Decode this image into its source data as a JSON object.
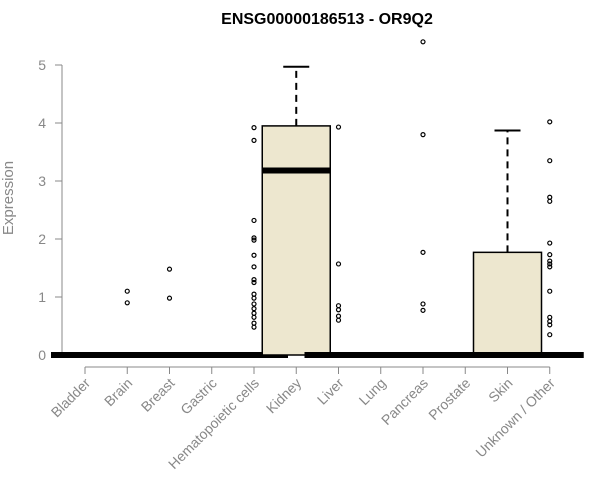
{
  "chart_data": {
    "type": "box",
    "title": "ENSG00000186513 - OR9Q2",
    "ylabel": "Expression",
    "xlabel": "",
    "ylim": [
      0,
      5.5
    ],
    "y_ticks": [
      0,
      1,
      2,
      3,
      4,
      5
    ],
    "box_color": "#ede7cf",
    "categories": [
      {
        "name": "Bladder",
        "q1": 0,
        "median": 0,
        "q3": 0,
        "whisker_low": 0,
        "whisker_high": 0,
        "outliers": []
      },
      {
        "name": "Brain",
        "q1": 0,
        "median": 0,
        "q3": 0,
        "whisker_low": 0,
        "whisker_high": 0,
        "outliers": [
          1.1,
          0.9
        ]
      },
      {
        "name": "Breast",
        "q1": 0,
        "median": 0,
        "q3": 0,
        "whisker_low": 0,
        "whisker_high": 0,
        "outliers": [
          1.48,
          0.98
        ]
      },
      {
        "name": "Gastric",
        "q1": 0,
        "median": 0,
        "q3": 0,
        "whisker_low": 0,
        "whisker_high": 0,
        "outliers": []
      },
      {
        "name": "Hematopoietic cells",
        "q1": 0,
        "median": 0,
        "q3": 0,
        "whisker_low": 0,
        "whisker_high": 0,
        "outliers": [
          3.92,
          3.7,
          2.32,
          2.02,
          1.98,
          1.72,
          1.52,
          1.3,
          1.25,
          1.05,
          0.98,
          0.88,
          0.8,
          0.72,
          0.65,
          0.55,
          0.48
        ]
      },
      {
        "name": "Kidney",
        "q1": 0,
        "median": 3.18,
        "q3": 3.95,
        "whisker_low": 0,
        "whisker_high": 4.97,
        "outliers": []
      },
      {
        "name": "Liver",
        "q1": 0,
        "median": 0,
        "q3": 0,
        "whisker_low": 0,
        "whisker_high": 0,
        "outliers": [
          3.93,
          1.57,
          0.85,
          0.78,
          0.67,
          0.6
        ]
      },
      {
        "name": "Lung",
        "q1": 0,
        "median": 0,
        "q3": 0,
        "whisker_low": 0,
        "whisker_high": 0,
        "outliers": []
      },
      {
        "name": "Pancreas",
        "q1": 0,
        "median": 0,
        "q3": 0,
        "whisker_low": 0,
        "whisker_high": 0,
        "outliers": [
          5.4,
          3.8,
          1.77,
          0.88,
          0.77
        ]
      },
      {
        "name": "Prostate",
        "q1": 0,
        "median": 0,
        "q3": 0,
        "whisker_low": 0,
        "whisker_high": 0,
        "outliers": []
      },
      {
        "name": "Skin",
        "q1": 0,
        "median": 0,
        "q3": 1.77,
        "whisker_low": 0,
        "whisker_high": 3.87,
        "outliers": []
      },
      {
        "name": "Unknown / Other",
        "q1": 0,
        "median": 0,
        "q3": 0,
        "whisker_low": 0,
        "whisker_high": 0,
        "outliers": [
          4.02,
          3.35,
          2.72,
          2.65,
          1.93,
          1.73,
          1.62,
          1.57,
          1.52,
          1.1,
          0.65,
          0.58,
          0.52,
          0.35
        ]
      }
    ]
  }
}
